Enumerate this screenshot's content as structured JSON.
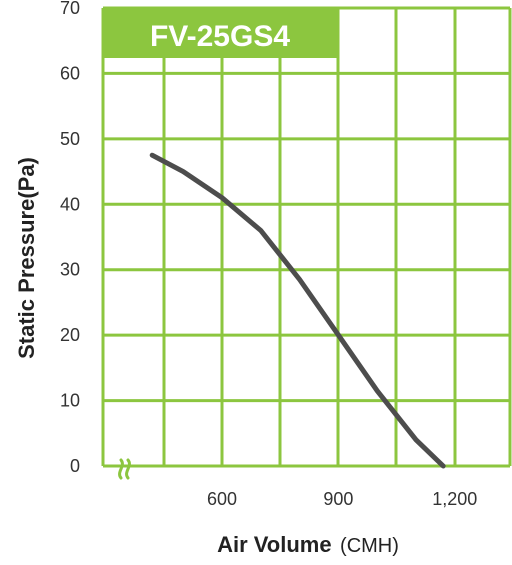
{
  "chart_data": {
    "type": "line",
    "title": "FV-25GS4",
    "xlabel": "Air Volume",
    "xlabel_unit": "(CMH)",
    "ylabel": "Static Pressure(Pa)",
    "x_ticks": [
      "600",
      "900",
      "1,200"
    ],
    "x_tick_values": [
      600,
      900,
      1200
    ],
    "y_ticks": [
      "0",
      "10",
      "20",
      "30",
      "40",
      "50",
      "60",
      "70"
    ],
    "y_tick_values": [
      0,
      10,
      20,
      30,
      40,
      50,
      60,
      70
    ],
    "xlim": [
      300,
      1300
    ],
    "ylim": [
      0,
      70
    ],
    "x_axis_break": true,
    "grid": true,
    "series": [
      {
        "x": [
          420,
          500,
          600,
          700,
          800,
          900,
          1000,
          1100,
          1170
        ],
        "y": [
          47.5,
          45,
          41,
          36,
          28.5,
          20,
          11.5,
          4,
          0
        ]
      }
    ]
  },
  "colors": {
    "grid": "#8cc63f",
    "title_bg": "#8cc63f",
    "line": "#4d4d4d",
    "break": "#8cc63f"
  }
}
